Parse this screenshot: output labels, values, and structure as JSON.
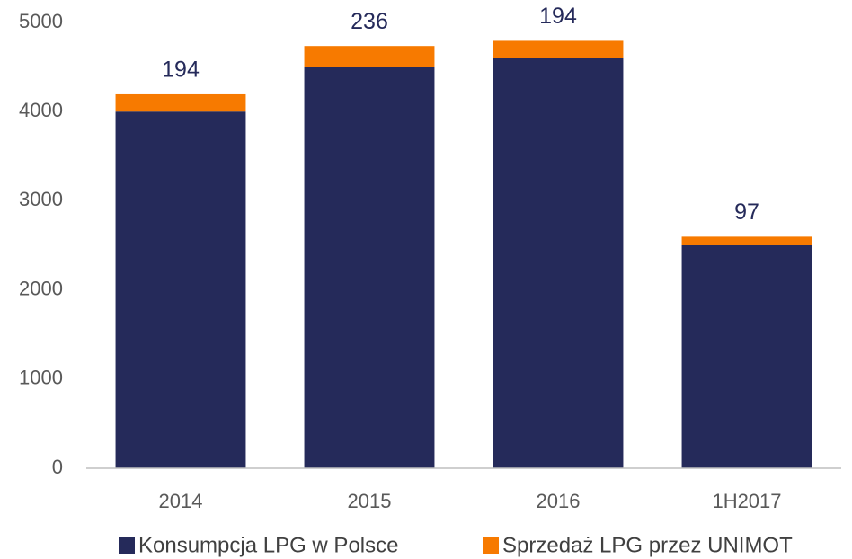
{
  "chart_data": {
    "type": "stacked_bar",
    "categories": [
      "2014",
      "2015",
      "2016",
      "1H2017"
    ],
    "series": [
      {
        "name": "Konsumpcja LPG w Polsce",
        "color": "#252a5a",
        "values": [
          4000,
          4500,
          4600,
          2500
        ]
      },
      {
        "name": "Sprzedaż LPG przez UNIMOT",
        "color": "#f77a00",
        "values": [
          194,
          236,
          194,
          97
        ]
      }
    ],
    "ylim": [
      0,
      5000
    ],
    "yticks": [
      0,
      1000,
      2000,
      3000,
      4000,
      5000
    ],
    "grid": false,
    "legend": "bottom"
  }
}
